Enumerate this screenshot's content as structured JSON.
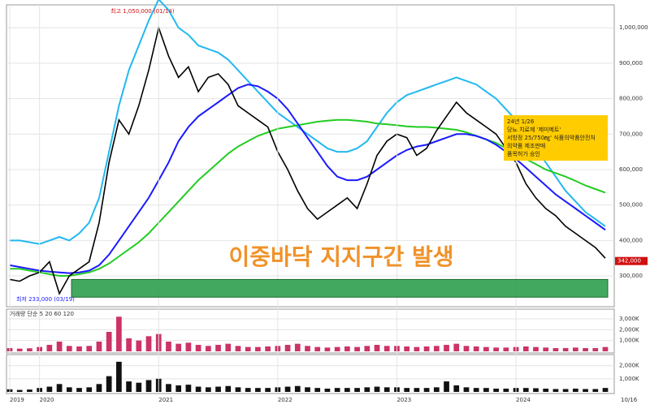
{
  "chart_data": [
    {
      "type": "line",
      "categories": [
        "2019",
        null,
        null,
        "2020",
        null,
        null,
        null,
        null,
        null,
        null,
        null,
        null,
        null,
        null,
        null,
        "2021",
        null,
        null,
        null,
        null,
        null,
        null,
        null,
        null,
        null,
        null,
        null,
        "2022",
        null,
        null,
        null,
        null,
        null,
        null,
        null,
        null,
        null,
        null,
        null,
        "2023",
        null,
        null,
        null,
        null,
        null,
        null,
        null,
        null,
        null,
        null,
        null,
        "2024",
        null,
        null,
        null,
        null,
        null,
        null,
        null,
        null,
        null
      ],
      "series": [
        {
          "color": "#22b8f0",
          "values": [
            400000,
            400000,
            395000,
            390000,
            400000,
            410000,
            400000,
            420000,
            450000,
            520000,
            650000,
            780000,
            880000,
            950000,
            1020000,
            1080000,
            1050000,
            1000000,
            980000,
            950000,
            940000,
            930000,
            910000,
            880000,
            850000,
            820000,
            790000,
            760000,
            740000,
            720000,
            700000,
            680000,
            660000,
            650000,
            650000,
            660000,
            680000,
            720000,
            760000,
            790000,
            810000,
            820000,
            830000,
            840000,
            850000,
            860000,
            850000,
            840000,
            820000,
            800000,
            770000,
            740000,
            700000,
            660000,
            620000,
            580000,
            540000,
            510000,
            480000,
            460000,
            440000
          ]
        },
        {
          "color": "#22cc22",
          "values": [
            320000,
            320000,
            315000,
            310000,
            305000,
            300000,
            300000,
            305000,
            310000,
            320000,
            335000,
            355000,
            375000,
            395000,
            420000,
            450000,
            480000,
            510000,
            540000,
            570000,
            595000,
            620000,
            645000,
            665000,
            680000,
            695000,
            705000,
            715000,
            720000,
            725000,
            730000,
            735000,
            738000,
            740000,
            740000,
            738000,
            735000,
            730000,
            728000,
            725000,
            722000,
            720000,
            720000,
            718000,
            715000,
            712000,
            705000,
            695000,
            685000,
            675000,
            660000,
            645000,
            630000,
            615000,
            600000,
            590000,
            580000,
            568000,
            555000,
            545000,
            535000
          ]
        },
        {
          "color": "#1a1aff",
          "values": [
            330000,
            325000,
            320000,
            315000,
            312000,
            310000,
            308000,
            310000,
            315000,
            330000,
            360000,
            400000,
            440000,
            480000,
            520000,
            570000,
            620000,
            680000,
            720000,
            750000,
            770000,
            790000,
            810000,
            830000,
            840000,
            835000,
            820000,
            800000,
            770000,
            730000,
            690000,
            650000,
            610000,
            580000,
            570000,
            570000,
            580000,
            600000,
            620000,
            640000,
            655000,
            665000,
            670000,
            680000,
            690000,
            700000,
            700000,
            695000,
            685000,
            670000,
            650000,
            630000,
            605000,
            580000,
            555000,
            530000,
            510000,
            490000,
            470000,
            450000,
            430000
          ]
        },
        {
          "color": "#000000",
          "values": [
            290000,
            285000,
            300000,
            310000,
            340000,
            250000,
            300000,
            320000,
            340000,
            450000,
            620000,
            740000,
            700000,
            780000,
            880000,
            1000000,
            920000,
            860000,
            890000,
            820000,
            860000,
            870000,
            840000,
            780000,
            760000,
            740000,
            720000,
            650000,
            600000,
            540000,
            490000,
            460000,
            480000,
            500000,
            520000,
            490000,
            560000,
            640000,
            680000,
            700000,
            690000,
            640000,
            660000,
            710000,
            750000,
            790000,
            760000,
            740000,
            720000,
            700000,
            660000,
            620000,
            560000,
            520000,
            490000,
            470000,
            440000,
            420000,
            400000,
            380000,
            350000
          ]
        }
      ],
      "ylim": [
        220000,
        1060000
      ],
      "yticks": [
        {
          "value": 300000,
          "label": "300,000"
        },
        {
          "value": 400000,
          "label": "400,000"
        },
        {
          "value": 500000,
          "label": "500,000"
        },
        {
          "value": 600000,
          "label": "600,000"
        },
        {
          "value": 700000,
          "label": "700,000"
        },
        {
          "value": 800000,
          "label": "800,000"
        },
        {
          "value": 900000,
          "label": "900,000"
        },
        {
          "value": 1000000,
          "label": "1,000,000"
        }
      ],
      "grid": true,
      "high_label": "최고 1,050,000 (01/14)",
      "low_label": "최저 233,000 (03/19)",
      "note_box": [
        "24년 1/26",
        "당뇨 치료제 '제미메트'",
        "서방정 25/750㎎' 식품의약품안전처",
        "의약품 제조판매",
        "품목허가 승인"
      ],
      "headline": "이중바닥 지지구간 발생",
      "support_zone": [
        240000,
        290000
      ],
      "current_price": 342000,
      "current_price_label": "342,000",
      "end_label": "10/16"
    },
    {
      "type": "bar",
      "legend": "거래량 단순 5 20 60 120",
      "color": "#cc3366",
      "values": [
        300,
        250,
        280,
        400,
        600,
        900,
        500,
        450,
        500,
        900,
        1800,
        3200,
        1200,
        1000,
        1400,
        1600,
        900,
        700,
        800,
        600,
        500,
        600,
        700,
        500,
        400,
        400,
        450,
        500,
        600,
        700,
        500,
        400,
        350,
        400,
        450,
        400,
        500,
        600,
        500,
        500,
        450,
        400,
        450,
        500,
        600,
        700,
        500,
        450,
        400,
        350,
        350,
        400,
        450,
        400,
        350,
        300,
        300,
        350,
        300,
        300,
        400
      ],
      "ylim": [
        0,
        3600
      ],
      "yticks": [
        {
          "value": 1000,
          "label": "1,000K"
        },
        {
          "value": 2000,
          "label": "2,000K"
        },
        {
          "value": 3000,
          "label": "3,000K"
        }
      ]
    },
    {
      "type": "bar",
      "color": "#111111",
      "values": [
        200,
        150,
        180,
        300,
        400,
        600,
        350,
        300,
        350,
        600,
        1200,
        2300,
        800,
        700,
        900,
        1000,
        600,
        500,
        550,
        400,
        350,
        400,
        450,
        350,
        300,
        300,
        300,
        350,
        400,
        450,
        350,
        300,
        250,
        300,
        300,
        300,
        350,
        400,
        350,
        350,
        300,
        300,
        300,
        350,
        800,
        500,
        350,
        300,
        300,
        250,
        250,
        300,
        300,
        280,
        250,
        220,
        220,
        250,
        220,
        220,
        300
      ],
      "ylim": [
        0,
        2600
      ],
      "yticks": [
        {
          "value": 1000,
          "label": "1,000K"
        },
        {
          "value": 2000,
          "label": "2,000K"
        }
      ]
    }
  ]
}
